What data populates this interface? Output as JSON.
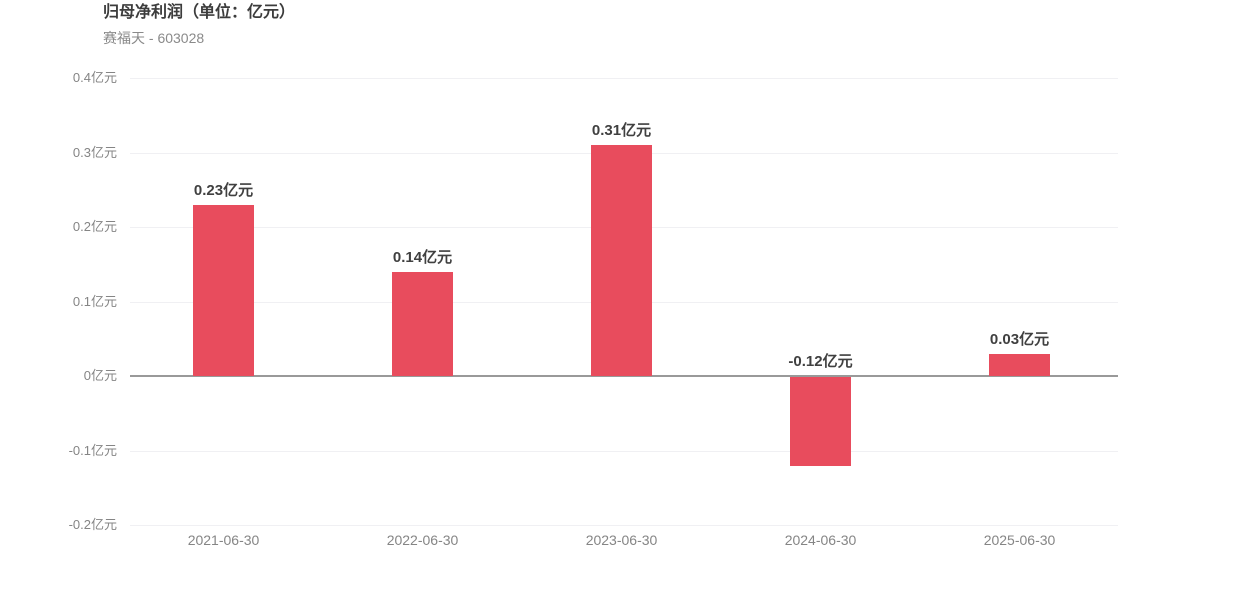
{
  "header": {
    "title": "归母净利润（单位：亿元）",
    "subtitle": "赛福天 - 603028"
  },
  "chart_data": {
    "type": "bar",
    "title": "归母净利润（单位：亿元）",
    "subtitle": "赛福天 - 603028",
    "categories": [
      "2021-06-30",
      "2022-06-30",
      "2023-06-30",
      "2024-06-30",
      "2025-06-30"
    ],
    "values": [
      0.23,
      0.14,
      0.31,
      -0.12,
      0.03
    ],
    "value_labels": [
      "0.23亿元",
      "0.14亿元",
      "0.31亿元",
      "-0.12亿元",
      "0.03亿元"
    ],
    "unit": "亿元",
    "xlabel": "",
    "ylabel": "",
    "ylim": [
      -0.2,
      0.4
    ],
    "yticks": [
      {
        "value": 0.4,
        "label": "0.4亿元"
      },
      {
        "value": 0.3,
        "label": "0.3亿元"
      },
      {
        "value": 0.2,
        "label": "0.2亿元"
      },
      {
        "value": 0.1,
        "label": "0.1亿元"
      },
      {
        "value": 0,
        "label": "0亿元"
      },
      {
        "value": -0.1,
        "label": "-0.1亿元"
      },
      {
        "value": -0.2,
        "label": "-0.2亿元"
      }
    ],
    "grid": "on",
    "legend": "none",
    "colors": {
      "bar": "#e84c5d",
      "gridline": "#f0f0f3",
      "zero_line": "#999999",
      "value_label": "#404040",
      "axis_label": "#858585",
      "title": "#3c3c3c",
      "subtitle": "#8a8a8a"
    }
  }
}
